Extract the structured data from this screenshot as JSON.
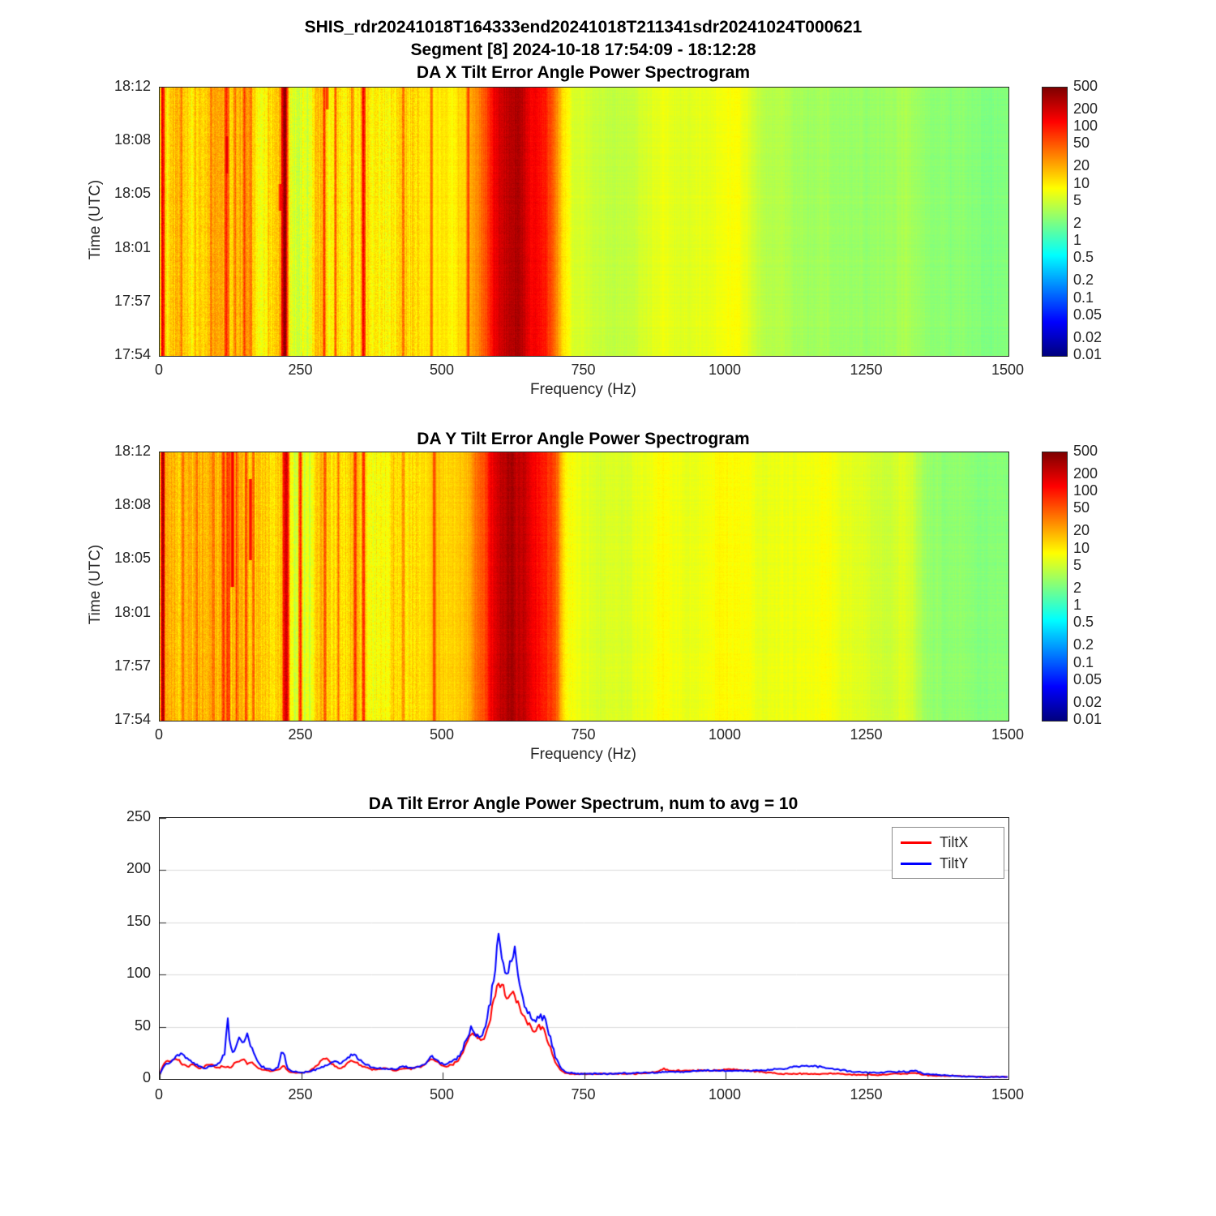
{
  "figure": {
    "title_line1": "SHIS_rdr20241018T164333end20241018T211341sdr20241024T000621",
    "title_line2": "Segment [8] 2024-10-18 17:54:09 - 18:12:28"
  },
  "colors": {
    "tiltx": "#ff0000",
    "tilty": "#0000ff",
    "colormap": "jet"
  },
  "chart_data": [
    {
      "type": "heatmap",
      "title": "DA X Tilt Error Angle Power Spectrogram",
      "xlabel": "Frequency (Hz)",
      "ylabel": "Time (UTC)",
      "xlim": [
        0,
        1500
      ],
      "xticks": [
        0,
        250,
        500,
        750,
        1000,
        1250,
        1500
      ],
      "ytick_labels": [
        "18:12",
        "18:08",
        "18:05",
        "18:01",
        "17:57",
        "17:54"
      ],
      "clim": [
        0.01,
        500
      ],
      "scale": "log",
      "colorbar_ticks": [
        "500",
        "200",
        "100",
        "50",
        "20",
        "10",
        "5",
        "2",
        "1",
        "0.5",
        "0.2",
        "0.1",
        "0.05",
        "0.02",
        "0.01"
      ],
      "power_profile": [
        [
          0,
          2
        ],
        [
          8,
          12
        ],
        [
          15,
          15
        ],
        [
          30,
          18
        ],
        [
          60,
          14
        ],
        [
          90,
          16
        ],
        [
          120,
          14
        ],
        [
          150,
          18
        ],
        [
          170,
          12
        ],
        [
          200,
          10
        ],
        [
          215,
          14
        ],
        [
          225,
          8
        ],
        [
          245,
          6
        ],
        [
          265,
          7
        ],
        [
          285,
          14
        ],
        [
          300,
          12
        ],
        [
          320,
          10
        ],
        [
          340,
          16
        ],
        [
          355,
          12
        ],
        [
          370,
          8
        ],
        [
          400,
          9
        ],
        [
          430,
          12
        ],
        [
          460,
          10
        ],
        [
          490,
          12
        ],
        [
          520,
          10
        ],
        [
          545,
          15
        ],
        [
          560,
          30
        ],
        [
          575,
          60
        ],
        [
          590,
          150
        ],
        [
          605,
          250
        ],
        [
          620,
          280
        ],
        [
          635,
          250
        ],
        [
          650,
          180
        ],
        [
          665,
          120
        ],
        [
          680,
          100
        ],
        [
          695,
          60
        ],
        [
          705,
          25
        ],
        [
          715,
          10
        ],
        [
          730,
          6
        ],
        [
          760,
          5
        ],
        [
          800,
          4.5
        ],
        [
          840,
          5
        ],
        [
          870,
          6
        ],
        [
          890,
          8
        ],
        [
          910,
          6
        ],
        [
          940,
          6
        ],
        [
          970,
          7
        ],
        [
          1000,
          8
        ],
        [
          1025,
          8
        ],
        [
          1050,
          5
        ],
        [
          1080,
          4
        ],
        [
          1120,
          3.5
        ],
        [
          1160,
          3.2
        ],
        [
          1200,
          3
        ],
        [
          1240,
          3
        ],
        [
          1280,
          3
        ],
        [
          1320,
          3.5
        ],
        [
          1340,
          3
        ],
        [
          1370,
          2.6
        ],
        [
          1420,
          2.4
        ],
        [
          1470,
          2.3
        ],
        [
          1500,
          2.3
        ]
      ],
      "stripes": [
        [
          5,
          200,
          2
        ],
        [
          38,
          40,
          2
        ],
        [
          62,
          35,
          2
        ],
        [
          90,
          40,
          2
        ],
        [
          118,
          60,
          3
        ],
        [
          132,
          35,
          2
        ],
        [
          150,
          50,
          2
        ],
        [
          160,
          40,
          2
        ],
        [
          220,
          300,
          3
        ],
        [
          290,
          60,
          2
        ],
        [
          310,
          40,
          2
        ],
        [
          340,
          50,
          2
        ],
        [
          360,
          120,
          2
        ],
        [
          430,
          40,
          2
        ],
        [
          480,
          50,
          2
        ],
        [
          545,
          60,
          2
        ]
      ],
      "segments": [
        [
          118,
          180,
          2,
          0.18,
          0.32
        ],
        [
          213,
          120,
          2,
          0.36,
          0.46
        ],
        [
          295,
          80,
          2,
          0.0,
          0.08
        ]
      ],
      "texture": {
        "col_low": 0.42,
        "pix_low": 0.3,
        "col_high": 0.09,
        "pix_high": 0.07,
        "low_cut": 460
      }
    },
    {
      "type": "heatmap",
      "title": "DA Y Tilt Error Angle Power Spectrogram",
      "xlabel": "Frequency (Hz)",
      "ylabel": "Time (UTC)",
      "xlim": [
        0,
        1500
      ],
      "xticks": [
        0,
        250,
        500,
        750,
        1000,
        1250,
        1500
      ],
      "ytick_labels": [
        "18:12",
        "18:08",
        "18:05",
        "18:01",
        "17:57",
        "17:54"
      ],
      "clim": [
        0.01,
        500
      ],
      "scale": "log",
      "colorbar_ticks": [
        "500",
        "200",
        "100",
        "50",
        "20",
        "10",
        "5",
        "2",
        "1",
        "0.5",
        "0.2",
        "0.1",
        "0.05",
        "0.02",
        "0.01"
      ],
      "power_profile": [
        [
          0,
          2
        ],
        [
          8,
          15
        ],
        [
          15,
          20
        ],
        [
          30,
          22
        ],
        [
          60,
          18
        ],
        [
          90,
          20
        ],
        [
          120,
          18
        ],
        [
          150,
          22
        ],
        [
          170,
          15
        ],
        [
          200,
          12
        ],
        [
          215,
          16
        ],
        [
          230,
          8
        ],
        [
          250,
          6
        ],
        [
          270,
          8
        ],
        [
          290,
          16
        ],
        [
          310,
          14
        ],
        [
          330,
          12
        ],
        [
          350,
          18
        ],
        [
          370,
          10
        ],
        [
          400,
          10
        ],
        [
          430,
          14
        ],
        [
          460,
          12
        ],
        [
          490,
          14
        ],
        [
          520,
          12
        ],
        [
          545,
          18
        ],
        [
          560,
          35
        ],
        [
          575,
          70
        ],
        [
          590,
          160
        ],
        [
          605,
          260
        ],
        [
          620,
          300
        ],
        [
          635,
          260
        ],
        [
          650,
          190
        ],
        [
          665,
          130
        ],
        [
          680,
          110
        ],
        [
          695,
          70
        ],
        [
          705,
          30
        ],
        [
          715,
          12
        ],
        [
          730,
          8
        ],
        [
          760,
          6
        ],
        [
          800,
          5.5
        ],
        [
          840,
          6
        ],
        [
          870,
          7
        ],
        [
          890,
          9
        ],
        [
          910,
          7
        ],
        [
          940,
          7
        ],
        [
          970,
          8
        ],
        [
          1000,
          9
        ],
        [
          1025,
          9
        ],
        [
          1060,
          7
        ],
        [
          1100,
          7
        ],
        [
          1140,
          8
        ],
        [
          1170,
          8
        ],
        [
          1200,
          7
        ],
        [
          1240,
          6
        ],
        [
          1280,
          5
        ],
        [
          1310,
          6
        ],
        [
          1330,
          5
        ],
        [
          1360,
          3
        ],
        [
          1400,
          2.6
        ],
        [
          1450,
          2.4
        ],
        [
          1500,
          2.3
        ]
      ],
      "stripes": [
        [
          5,
          250,
          2
        ],
        [
          40,
          45,
          2
        ],
        [
          65,
          40,
          2
        ],
        [
          95,
          45,
          2
        ],
        [
          112,
          90,
          2
        ],
        [
          120,
          80,
          3
        ],
        [
          135,
          50,
          2
        ],
        [
          152,
          60,
          2
        ],
        [
          165,
          45,
          2
        ],
        [
          222,
          250,
          3
        ],
        [
          248,
          90,
          2
        ],
        [
          292,
          60,
          2
        ],
        [
          315,
          45,
          2
        ],
        [
          345,
          55,
          2
        ],
        [
          360,
          100,
          2
        ],
        [
          430,
          45,
          2
        ],
        [
          485,
          55,
          2
        ]
      ],
      "segments": [
        [
          128,
          150,
          2,
          0.0,
          0.5
        ],
        [
          160,
          120,
          2,
          0.1,
          0.4
        ]
      ],
      "texture": {
        "col_low": 0.4,
        "pix_low": 0.28,
        "col_high": 0.1,
        "pix_high": 0.08,
        "low_cut": 460
      }
    },
    {
      "type": "line",
      "title": "DA Tilt Error Angle Power Spectrum, num to avg = 10",
      "xlabel": "",
      "ylabel": "",
      "xlim": [
        0,
        1500
      ],
      "ylim": [
        0,
        250
      ],
      "xticks": [
        0,
        250,
        500,
        750,
        1000,
        1250,
        1500
      ],
      "yticks": [
        0,
        50,
        100,
        150,
        200,
        250
      ],
      "grid": "horizontal",
      "legend_position": "top-right",
      "x": [
        0,
        5,
        10,
        20,
        30,
        40,
        50,
        60,
        70,
        80,
        90,
        100,
        110,
        115,
        120,
        125,
        130,
        140,
        148,
        155,
        162,
        170,
        180,
        190,
        200,
        210,
        215,
        220,
        225,
        235,
        250,
        265,
        280,
        290,
        300,
        310,
        320,
        330,
        340,
        350,
        360,
        375,
        390,
        400,
        415,
        430,
        445,
        460,
        470,
        480,
        490,
        500,
        510,
        520,
        530,
        540,
        550,
        560,
        570,
        580,
        590,
        595,
        600,
        605,
        610,
        615,
        620,
        625,
        630,
        635,
        640,
        650,
        660,
        670,
        680,
        690,
        700,
        710,
        720,
        740,
        760,
        800,
        850,
        880,
        890,
        900,
        925,
        950,
        975,
        1000,
        1020,
        1040,
        1060,
        1080,
        1100,
        1125,
        1150,
        1175,
        1200,
        1225,
        1250,
        1275,
        1300,
        1320,
        1335,
        1350,
        1375,
        1400,
        1450,
        1500
      ],
      "series": [
        {
          "name": "TiltX",
          "color": "#ff0000",
          "values": [
            4,
            12,
            16,
            18,
            20,
            14,
            12,
            15,
            10,
            12,
            15,
            10,
            12,
            11,
            12,
            10,
            14,
            17,
            20,
            14,
            17,
            12,
            9,
            8,
            8,
            9,
            11,
            13,
            8,
            6,
            6,
            7,
            14,
            21,
            17,
            12,
            10,
            14,
            18,
            15,
            12,
            9,
            10,
            10,
            8,
            10,
            10,
            12,
            14,
            20,
            17,
            12,
            12,
            15,
            20,
            30,
            45,
            40,
            36,
            50,
            72,
            85,
            95,
            88,
            84,
            80,
            85,
            82,
            76,
            70,
            64,
            55,
            45,
            50,
            46,
            30,
            15,
            8,
            5,
            5,
            5,
            5,
            5,
            7,
            10,
            8,
            8,
            8,
            8,
            9,
            9,
            8,
            7,
            6,
            5,
            5,
            5,
            5,
            5,
            4,
            4,
            4,
            5,
            5,
            6,
            4,
            3,
            3,
            2,
            2
          ]
        },
        {
          "name": "TiltY",
          "color": "#0000ff",
          "values": [
            4,
            10,
            14,
            16,
            22,
            25,
            18,
            15,
            12,
            10,
            13,
            12,
            20,
            25,
            58,
            30,
            24,
            40,
            35,
            42,
            30,
            20,
            12,
            10,
            8,
            12,
            24,
            26,
            10,
            7,
            6,
            7,
            10,
            12,
            15,
            17,
            14,
            20,
            24,
            20,
            15,
            11,
            10,
            10,
            9,
            12,
            10,
            12,
            15,
            22,
            18,
            14,
            15,
            18,
            22,
            35,
            48,
            42,
            40,
            60,
            95,
            120,
            135,
            112,
            108,
            105,
            112,
            125,
            118,
            98,
            80,
            65,
            55,
            60,
            58,
            40,
            20,
            10,
            6,
            5,
            5,
            5,
            6,
            6,
            7,
            7,
            7,
            8,
            8,
            8,
            8,
            8,
            8,
            9,
            10,
            12,
            13,
            11,
            9,
            7,
            6,
            6,
            7,
            7,
            8,
            5,
            4,
            3,
            2,
            2
          ]
        }
      ]
    }
  ]
}
